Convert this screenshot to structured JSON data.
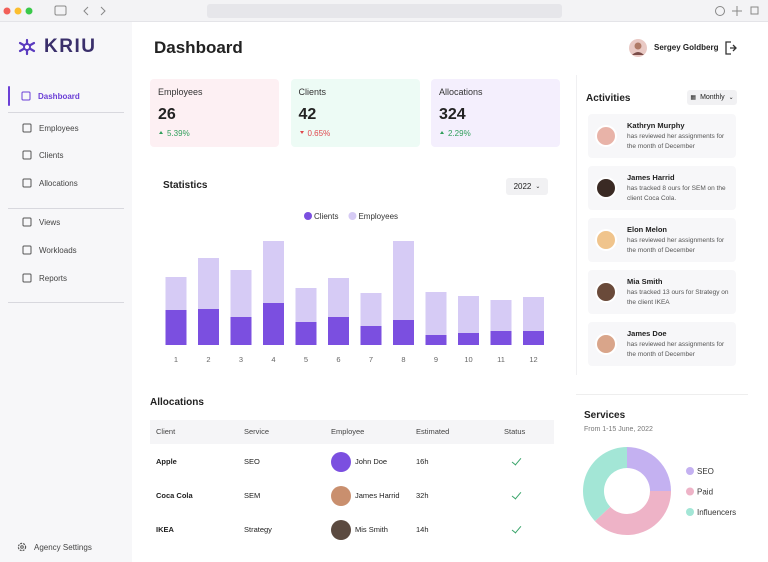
{
  "sidebar": {
    "logo": "KRIU",
    "nav": [
      "Dashboard",
      "Employees",
      "Clients",
      "Allocations",
      "Views",
      "Workloads",
      "Reports"
    ],
    "settings": "Agency Settings"
  },
  "header": {
    "title": "Dashboard",
    "user": "Sergey Goldberg"
  },
  "kpis": [
    {
      "label": "Employees",
      "value": 26,
      "change": "5.39%",
      "trend": "up"
    },
    {
      "label": "Clients",
      "value": 42,
      "change": "0.65%",
      "trend": "down"
    },
    {
      "label": "Allocations",
      "value": 324,
      "change": "2.29%",
      "trend": "up"
    }
  ],
  "statistics_filter": "2022",
  "allocations": {
    "title": "Allocations",
    "columns": [
      "Client",
      "Service",
      "Employee",
      "Estimated",
      "Status"
    ],
    "rows": [
      [
        "Apple",
        "SEO",
        "John Doe",
        "16h"
      ],
      [
        "Coca Cola",
        "SEM",
        "James Harrid",
        "32h"
      ],
      [
        "IKEA",
        "Strategy",
        "Mis Smith",
        "14h"
      ]
    ]
  },
  "activities": {
    "title": "Activities",
    "filter": "Monthly",
    "items": [
      {
        "name": "Kathryn Murphy",
        "text": "has reviewed her assignments for the month of December"
      },
      {
        "name": "James Harrid",
        "text": "has tracked 8 ours for SEM on the  client Coca Cola."
      },
      {
        "name": "Elon Melon",
        "text": "has reviewed her assignments for the month of December"
      },
      {
        "name": "Mia Smith",
        "text": "has tracked 13 ours for Strategy on the  client IKEA"
      },
      {
        "name": "James Doe",
        "text": "has reviewed her assignments for the month of December"
      }
    ]
  },
  "chart_data": [
    {
      "type": "bar",
      "stacked": true,
      "title": "Statistics",
      "categories": [
        "1",
        "2",
        "3",
        "4",
        "5",
        "6",
        "7",
        "8",
        "9",
        "10",
        "11",
        "12"
      ],
      "series": [
        {
          "name": "Clients",
          "color": "#7b4fe0",
          "values": [
            35,
            36,
            28,
            42,
            23,
            28,
            19,
            25,
            10,
            12,
            14,
            14
          ]
        },
        {
          "name": "Employees",
          "color": "#d6cbf5",
          "values": [
            33,
            51,
            47,
            62,
            34,
            39,
            33,
            79,
            43,
            37,
            31,
            34
          ]
        }
      ]
    },
    {
      "type": "pie",
      "title": "Services",
      "subtitle": "From 1-15 June, 2022",
      "categories": [
        "SEO",
        "Paid",
        "Influencers"
      ],
      "values": [
        25,
        38,
        37
      ],
      "colors": [
        "#c4b1f1",
        "#eeb3c7",
        "#a3e6d6"
      ]
    }
  ]
}
